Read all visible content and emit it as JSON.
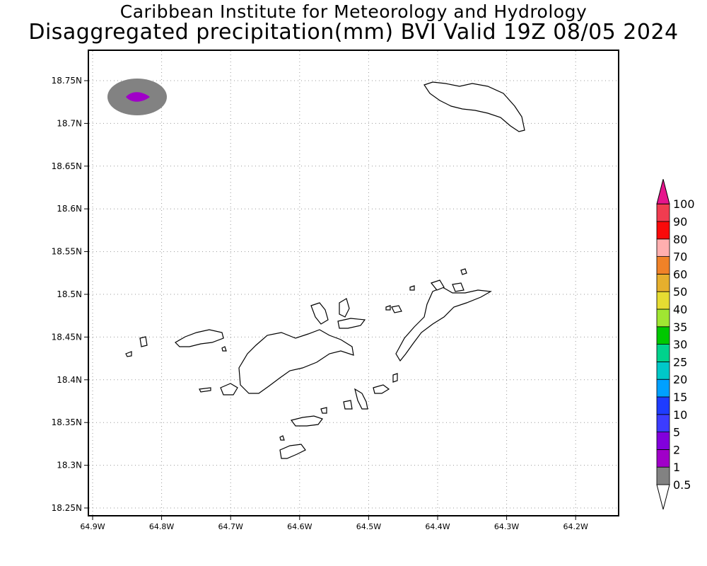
{
  "title": {
    "line1": "Caribbean Institute for Meteorology and Hydrology",
    "line2": "Disaggregated precipitation(mm) BVI Valid 19Z 08/05 2024"
  },
  "map": {
    "lon_ticks": [
      "64.9W",
      "64.8W",
      "64.7W",
      "64.6W",
      "64.5W",
      "64.4W",
      "64.3W",
      "64.2W"
    ],
    "lat_ticks": [
      "18.75N",
      "18.7N",
      "18.65N",
      "18.6N",
      "18.55N",
      "18.5N",
      "18.45N",
      "18.4N",
      "18.35N",
      "18.3N",
      "18.25N"
    ],
    "grid": "dotted",
    "precip_cell": {
      "outer_class": "1",
      "inner_class": "2",
      "outer_color": "#828282",
      "inner_color": "#a000c8"
    }
  },
  "colorbar": {
    "levels": [
      {
        "label": "0.5",
        "color": "#ffffff"
      },
      {
        "label": "1",
        "color": "#828282"
      },
      {
        "label": "2",
        "color": "#a000c8"
      },
      {
        "label": "5",
        "color": "#8200dc"
      },
      {
        "label": "10",
        "color": "#3c3cff"
      },
      {
        "label": "15",
        "color": "#1e3cff"
      },
      {
        "label": "20",
        "color": "#00a0ff"
      },
      {
        "label": "25",
        "color": "#00c8c8"
      },
      {
        "label": "30",
        "color": "#00d28c"
      },
      {
        "label": "35",
        "color": "#00c800"
      },
      {
        "label": "40",
        "color": "#a0e632"
      },
      {
        "label": "50",
        "color": "#e6dc32"
      },
      {
        "label": "60",
        "color": "#e6af2d"
      },
      {
        "label": "70",
        "color": "#f08228"
      },
      {
        "label": "80",
        "color": "#ffafaf"
      },
      {
        "label": "90",
        "color": "#fa0a0a"
      },
      {
        "label": "100",
        "color": "#f03c50"
      },
      {
        "label": "",
        "color": "#e6148c"
      }
    ]
  }
}
